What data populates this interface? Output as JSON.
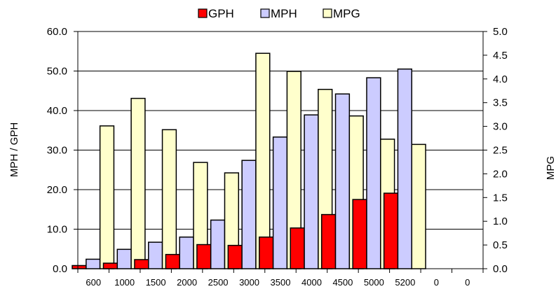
{
  "chart_data": {
    "type": "bar",
    "categories": [
      "600",
      "1000",
      "1500",
      "2000",
      "2500",
      "3000",
      "3500",
      "4000",
      "4500",
      "5000",
      "5200",
      "0",
      "0"
    ],
    "series": [
      {
        "name": "GPH",
        "axis": "left",
        "color": "#ff0000",
        "values": [
          0.8,
          1.4,
          2.3,
          3.6,
          6.1,
          5.9,
          8.0,
          10.3,
          13.7,
          17.5,
          19.1,
          null,
          null
        ]
      },
      {
        "name": "MPH",
        "axis": "left",
        "color": "#ccccff",
        "values": [
          2.4,
          4.9,
          6.7,
          8.0,
          12.3,
          27.4,
          33.3,
          38.9,
          44.2,
          48.3,
          50.5,
          null,
          null
        ]
      },
      {
        "name": "MPG",
        "axis": "right",
        "color": "#ffffcc",
        "values": [
          3.01,
          3.59,
          2.93,
          2.24,
          2.02,
          4.54,
          4.16,
          3.78,
          3.22,
          2.73,
          2.62,
          null,
          null
        ]
      }
    ],
    "ylabel": "MPH / GPH",
    "y2label": "MPG",
    "ylim": [
      0,
      60
    ],
    "y2lim": [
      0,
      5
    ],
    "yticks": [
      "0.0",
      "10.0",
      "20.0",
      "30.0",
      "40.0",
      "50.0",
      "60.0"
    ],
    "y2ticks": [
      "0.0",
      "0.5",
      "1.0",
      "1.5",
      "2.0",
      "2.5",
      "3.0",
      "3.5",
      "4.0",
      "4.5",
      "5.0"
    ],
    "grid": "horizontal-major",
    "legend": "top-center"
  }
}
